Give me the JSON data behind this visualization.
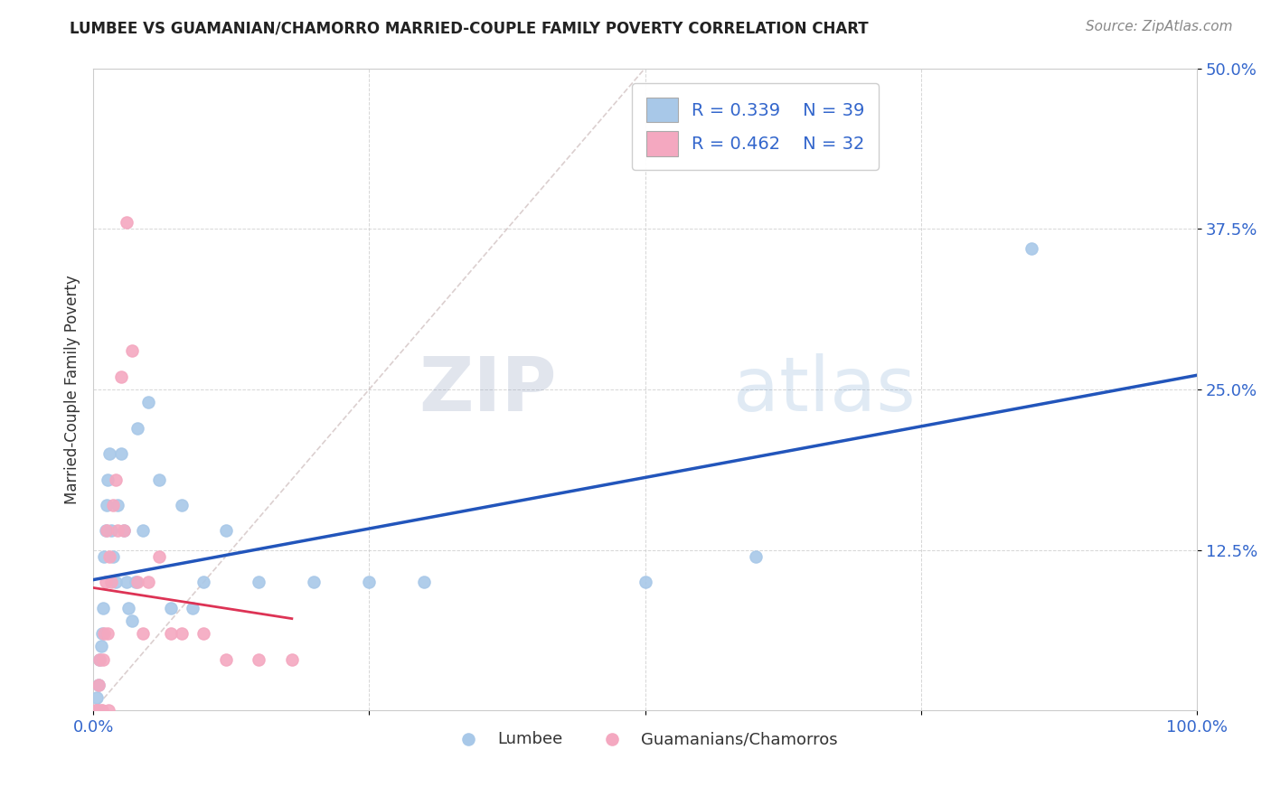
{
  "title": "LUMBEE VS GUAMANIAN/CHAMORRO MARRIED-COUPLE FAMILY POVERTY CORRELATION CHART",
  "source_text": "Source: ZipAtlas.com",
  "ylabel": "Married-Couple Family Poverty",
  "xlim": [
    0,
    1.0
  ],
  "ylim": [
    0,
    0.5
  ],
  "ytick_labels": [
    "12.5%",
    "25.0%",
    "37.5%",
    "50.0%"
  ],
  "ytick_values": [
    0.125,
    0.25,
    0.375,
    0.5
  ],
  "legend_r_lumbee": "R = 0.339",
  "legend_n_lumbee": "N = 39",
  "legend_r_guam": "R = 0.462",
  "legend_n_guam": "N = 32",
  "lumbee_color": "#a8c8e8",
  "guam_color": "#f4a8c0",
  "lumbee_line_color": "#2255bb",
  "guam_line_color": "#dd3355",
  "diagonal_color": "#ccbbbb",
  "background_color": "#ffffff",
  "watermark_zip": "ZIP",
  "watermark_atlas": "atlas",
  "lumbee_x": [
    0.002,
    0.003,
    0.004,
    0.005,
    0.006,
    0.007,
    0.008,
    0.009,
    0.01,
    0.011,
    0.012,
    0.013,
    0.015,
    0.016,
    0.018,
    0.02,
    0.022,
    0.025,
    0.028,
    0.03,
    0.032,
    0.035,
    0.038,
    0.04,
    0.045,
    0.05,
    0.06,
    0.07,
    0.08,
    0.09,
    0.1,
    0.12,
    0.15,
    0.2,
    0.25,
    0.3,
    0.5,
    0.6,
    0.85
  ],
  "lumbee_y": [
    0.0,
    0.01,
    0.0,
    0.02,
    0.04,
    0.05,
    0.06,
    0.08,
    0.12,
    0.14,
    0.16,
    0.18,
    0.2,
    0.14,
    0.12,
    0.1,
    0.16,
    0.2,
    0.14,
    0.1,
    0.08,
    0.07,
    0.1,
    0.22,
    0.14,
    0.24,
    0.18,
    0.08,
    0.16,
    0.08,
    0.1,
    0.14,
    0.1,
    0.1,
    0.1,
    0.1,
    0.1,
    0.12,
    0.36
  ],
  "guam_x": [
    0.002,
    0.003,
    0.004,
    0.005,
    0.006,
    0.007,
    0.008,
    0.009,
    0.01,
    0.011,
    0.012,
    0.013,
    0.014,
    0.015,
    0.016,
    0.018,
    0.02,
    0.022,
    0.025,
    0.028,
    0.03,
    0.035,
    0.04,
    0.045,
    0.05,
    0.06,
    0.07,
    0.08,
    0.1,
    0.12,
    0.15,
    0.18
  ],
  "guam_y": [
    0.0,
    0.0,
    0.0,
    0.02,
    0.04,
    0.0,
    0.0,
    0.04,
    0.06,
    0.1,
    0.14,
    0.06,
    0.0,
    0.12,
    0.1,
    0.16,
    0.18,
    0.14,
    0.26,
    0.14,
    0.38,
    0.28,
    0.1,
    0.06,
    0.1,
    0.12,
    0.06,
    0.06,
    0.06,
    0.04,
    0.04,
    0.04
  ]
}
